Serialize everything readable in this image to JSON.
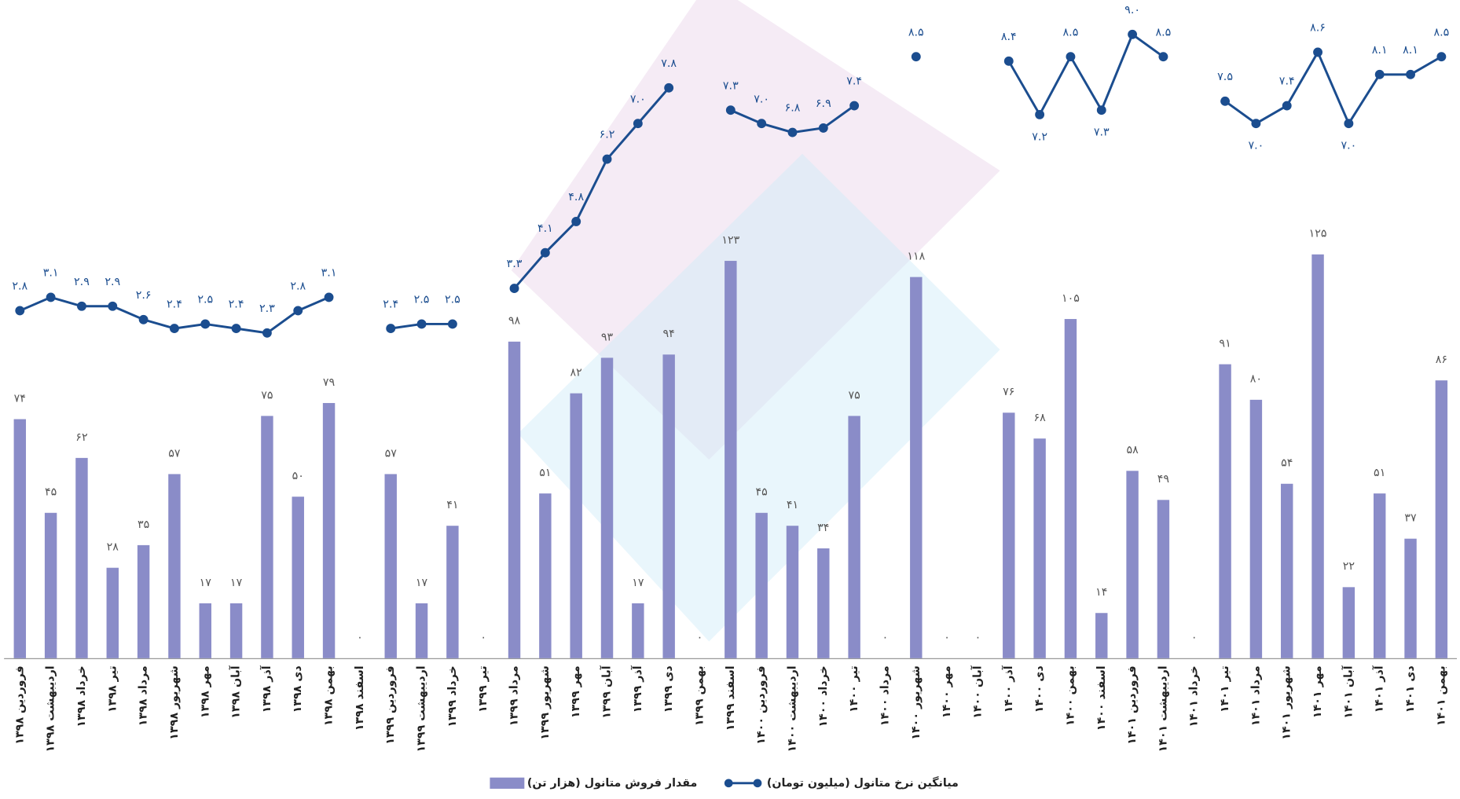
{
  "chart_data": {
    "type": "bar",
    "categories": [
      "فروردین ۱۳۹۸",
      "اردیبهشت ۱۳۹۸",
      "خرداد ۱۳۹۸",
      "تیر ۱۳۹۸",
      "مرداد ۱۳۹۸",
      "شهریور ۱۳۹۸",
      "مهر ۱۳۹۸",
      "آبان ۱۳۹۸",
      "آذر ۱۳۹۸",
      "دی ۱۳۹۸",
      "بهمن ۱۳۹۸",
      "اسفند ۱۳۹۸",
      "فروردین ۱۳۹۹",
      "اردیبهشت ۱۳۹۹",
      "خرداد ۱۳۹۹",
      "تیر ۱۳۹۹",
      "مرداد ۱۳۹۹",
      "شهریور ۱۳۹۹",
      "مهر ۱۳۹۹",
      "آبان ۱۳۹۹",
      "آذر ۱۳۹۹",
      "دی ۱۳۹۹",
      "بهمن ۱۳۹۹",
      "اسفند ۱۳۹۹",
      "فروردین ۱۴۰۰",
      "اردیبهشت ۱۴۰۰",
      "خرداد ۱۴۰۰",
      "تیر ۱۴۰۰",
      "مرداد ۱۴۰۰",
      "شهریور ۱۴۰۰",
      "مهر ۱۴۰۰",
      "آبان ۱۴۰۰",
      "آذر ۱۴۰۰",
      "دی ۱۴۰۰",
      "بهمن ۱۴۰۰",
      "اسفند ۱۴۰۰",
      "فروردین ۱۴۰۱",
      "اردیبهشت ۱۴۰۱",
      "خرداد ۱۴۰۱",
      "تیر ۱۴۰۱",
      "مرداد ۱۴۰۱",
      "شهریور ۱۴۰۱",
      "مهر ۱۴۰۱",
      "آبان ۱۴۰۱",
      "آذر ۱۴۰۱",
      "دی ۱۴۰۱",
      "بهمن ۱۴۰۱"
    ],
    "series": [
      {
        "name": "مقدار فروش متانول (هزار تن)",
        "type": "bar",
        "color": "#8a8cc8",
        "values": [
          74,
          45,
          62,
          28,
          35,
          57,
          17,
          17,
          75,
          50,
          79,
          0,
          57,
          17,
          41,
          0,
          98,
          51,
          82,
          93,
          17,
          94,
          0,
          123,
          45,
          41,
          34,
          75,
          0,
          118,
          0,
          0,
          76,
          68,
          105,
          14,
          58,
          49,
          0,
          91,
          80,
          54,
          125,
          22,
          51,
          37,
          86
        ],
        "value_labels": [
          "۷۴",
          "۴۵",
          "۶۲",
          "۲۸",
          "۳۵",
          "۵۷",
          "۱۷",
          "۱۷",
          "۷۵",
          "۵۰",
          "۷۹",
          "۰",
          "۵۷",
          "۱۷",
          "۴۱",
          "۰",
          "۹۸",
          "۵۱",
          "۸۲",
          "۹۳",
          "۱۷",
          "۹۴",
          "۰",
          "۱۲۳",
          "۴۵",
          "۴۱",
          "۳۴",
          "۷۵",
          "۰",
          "۱۱۸",
          "۰",
          "۰",
          "۷۶",
          "۶۸",
          "۱۰۵",
          "۱۴",
          "۵۸",
          "۴۹",
          "۰",
          "۹۱",
          "۸۰",
          "۵۴",
          "۱۲۵",
          "۲۲",
          "۵۱",
          "۳۷",
          "۸۶"
        ]
      },
      {
        "name": "میانگین نرخ متانول (میلیون تومان)",
        "type": "line",
        "axis": "y2",
        "color": "#1b4d8f",
        "values": [
          2.8,
          3.1,
          2.9,
          2.9,
          2.6,
          2.4,
          2.5,
          2.4,
          2.3,
          2.8,
          3.1,
          null,
          2.4,
          2.5,
          2.5,
          null,
          3.3,
          4.1,
          4.8,
          6.2,
          7.0,
          7.8,
          null,
          7.3,
          7.0,
          6.8,
          6.9,
          7.4,
          null,
          8.5,
          null,
          null,
          8.4,
          7.2,
          8.5,
          7.3,
          9.0,
          8.5,
          null,
          7.5,
          7.0,
          7.4,
          8.6,
          7.0,
          8.1,
          8.1,
          8.5
        ],
        "value_labels": [
          "۲.۸",
          "۳.۱",
          "۲.۹",
          "۲.۹",
          "۲.۶",
          "۲.۴",
          "۲.۵",
          "۲.۴",
          "۲.۳",
          "۲.۸",
          "۳.۱",
          null,
          "۲.۴",
          "۲.۵",
          "۲.۵",
          null,
          "۳.۳",
          "۴.۱",
          "۴.۸",
          "۶.۲",
          "۷.۰",
          "۷.۸",
          null,
          "۷.۳",
          "۷.۰",
          "۶.۸",
          "۶.۹",
          "۷.۴",
          null,
          "۸.۵",
          null,
          null,
          "۸.۴",
          "۷.۲",
          "۸.۵",
          "۷.۳",
          "۹.۰",
          "۸.۵",
          null,
          "۷.۵",
          "۷.۰",
          "۷.۴",
          "۸.۶",
          "۷.۰",
          "۸.۱",
          "۸.۱",
          "۸.۵"
        ]
      }
    ],
    "ylim": [
      0,
      200
    ],
    "y2lim": [
      -5,
      9.5
    ],
    "legend": "bottom"
  }
}
